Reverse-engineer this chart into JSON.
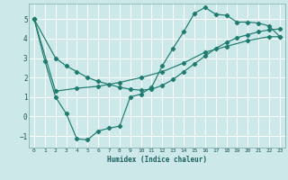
{
  "xlabel": "Humidex (Indice chaleur)",
  "bg_color": "#cce8e8",
  "grid_color": "#ffffff",
  "line_color": "#1e7b6e",
  "xlim": [
    -0.5,
    23.5
  ],
  "ylim": [
    -1.6,
    5.8
  ],
  "xticks": [
    0,
    1,
    2,
    3,
    4,
    5,
    6,
    7,
    8,
    9,
    10,
    11,
    12,
    13,
    14,
    15,
    16,
    17,
    18,
    19,
    20,
    21,
    22,
    23
  ],
  "yticks": [
    -1,
    0,
    1,
    2,
    3,
    4,
    5
  ],
  "line1_x": [
    0,
    1,
    2,
    3,
    4,
    5,
    6,
    7,
    8,
    9,
    10,
    11,
    12,
    13,
    14,
    15,
    16,
    17,
    18,
    19,
    20,
    21,
    22,
    23
  ],
  "line1_y": [
    5.0,
    2.85,
    1.0,
    0.15,
    -1.15,
    -1.2,
    -0.75,
    -0.6,
    -0.5,
    1.0,
    1.15,
    1.5,
    2.6,
    3.5,
    4.35,
    5.3,
    5.6,
    5.25,
    5.2,
    4.85,
    4.85,
    4.8,
    4.65,
    4.1
  ],
  "line2_x": [
    0,
    2,
    4,
    6,
    8,
    10,
    12,
    14,
    16,
    18,
    20,
    22,
    23
  ],
  "line2_y": [
    5.0,
    1.3,
    1.45,
    1.55,
    1.75,
    2.0,
    2.3,
    2.75,
    3.3,
    3.6,
    3.9,
    4.1,
    4.1
  ],
  "line3_x": [
    0,
    2,
    3,
    4,
    5,
    6,
    7,
    8,
    9,
    10,
    11,
    12,
    13,
    14,
    15,
    16,
    17,
    18,
    19,
    20,
    21,
    22,
    23
  ],
  "line3_y": [
    5.0,
    3.0,
    2.6,
    2.3,
    2.0,
    1.8,
    1.65,
    1.5,
    1.4,
    1.35,
    1.4,
    1.6,
    1.9,
    2.3,
    2.7,
    3.1,
    3.5,
    3.8,
    4.05,
    4.2,
    4.35,
    4.45,
    4.5
  ]
}
